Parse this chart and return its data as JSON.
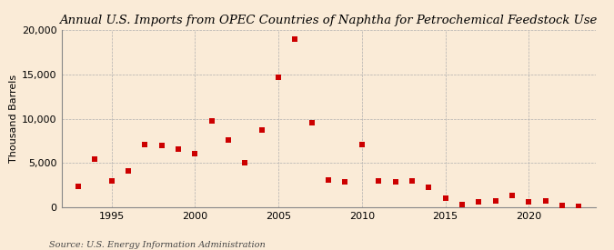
{
  "title": "Annual U.S. Imports from OPEC Countries of Naphtha for Petrochemical Feedstock Use",
  "ylabel": "Thousand Barrels",
  "source": "Source: U.S. Energy Information Administration",
  "background_color": "#faebd7",
  "plot_bg_color": "#faebd7",
  "marker_color": "#cc0000",
  "years": [
    1993,
    1994,
    1995,
    1996,
    1997,
    1998,
    1999,
    2000,
    2001,
    2002,
    2003,
    2004,
    2005,
    2006,
    2007,
    2008,
    2009,
    2010,
    2011,
    2012,
    2013,
    2014,
    2015,
    2016,
    2017,
    2018,
    2019,
    2020,
    2021,
    2022,
    2023
  ],
  "values": [
    2400,
    5500,
    3000,
    4100,
    7100,
    7000,
    6600,
    6100,
    9800,
    7600,
    5000,
    8700,
    14700,
    19000,
    9600,
    3100,
    2900,
    7100,
    3000,
    2900,
    3000,
    2300,
    1000,
    300,
    600,
    700,
    1400,
    600,
    700,
    200,
    100
  ],
  "xlim": [
    1992,
    2024
  ],
  "ylim": [
    0,
    20000
  ],
  "yticks": [
    0,
    5000,
    10000,
    15000,
    20000
  ],
  "xticks": [
    1995,
    2000,
    2005,
    2010,
    2015,
    2020
  ],
  "title_fontsize": 9.5,
  "ylabel_fontsize": 8,
  "tick_fontsize": 8,
  "source_fontsize": 7
}
